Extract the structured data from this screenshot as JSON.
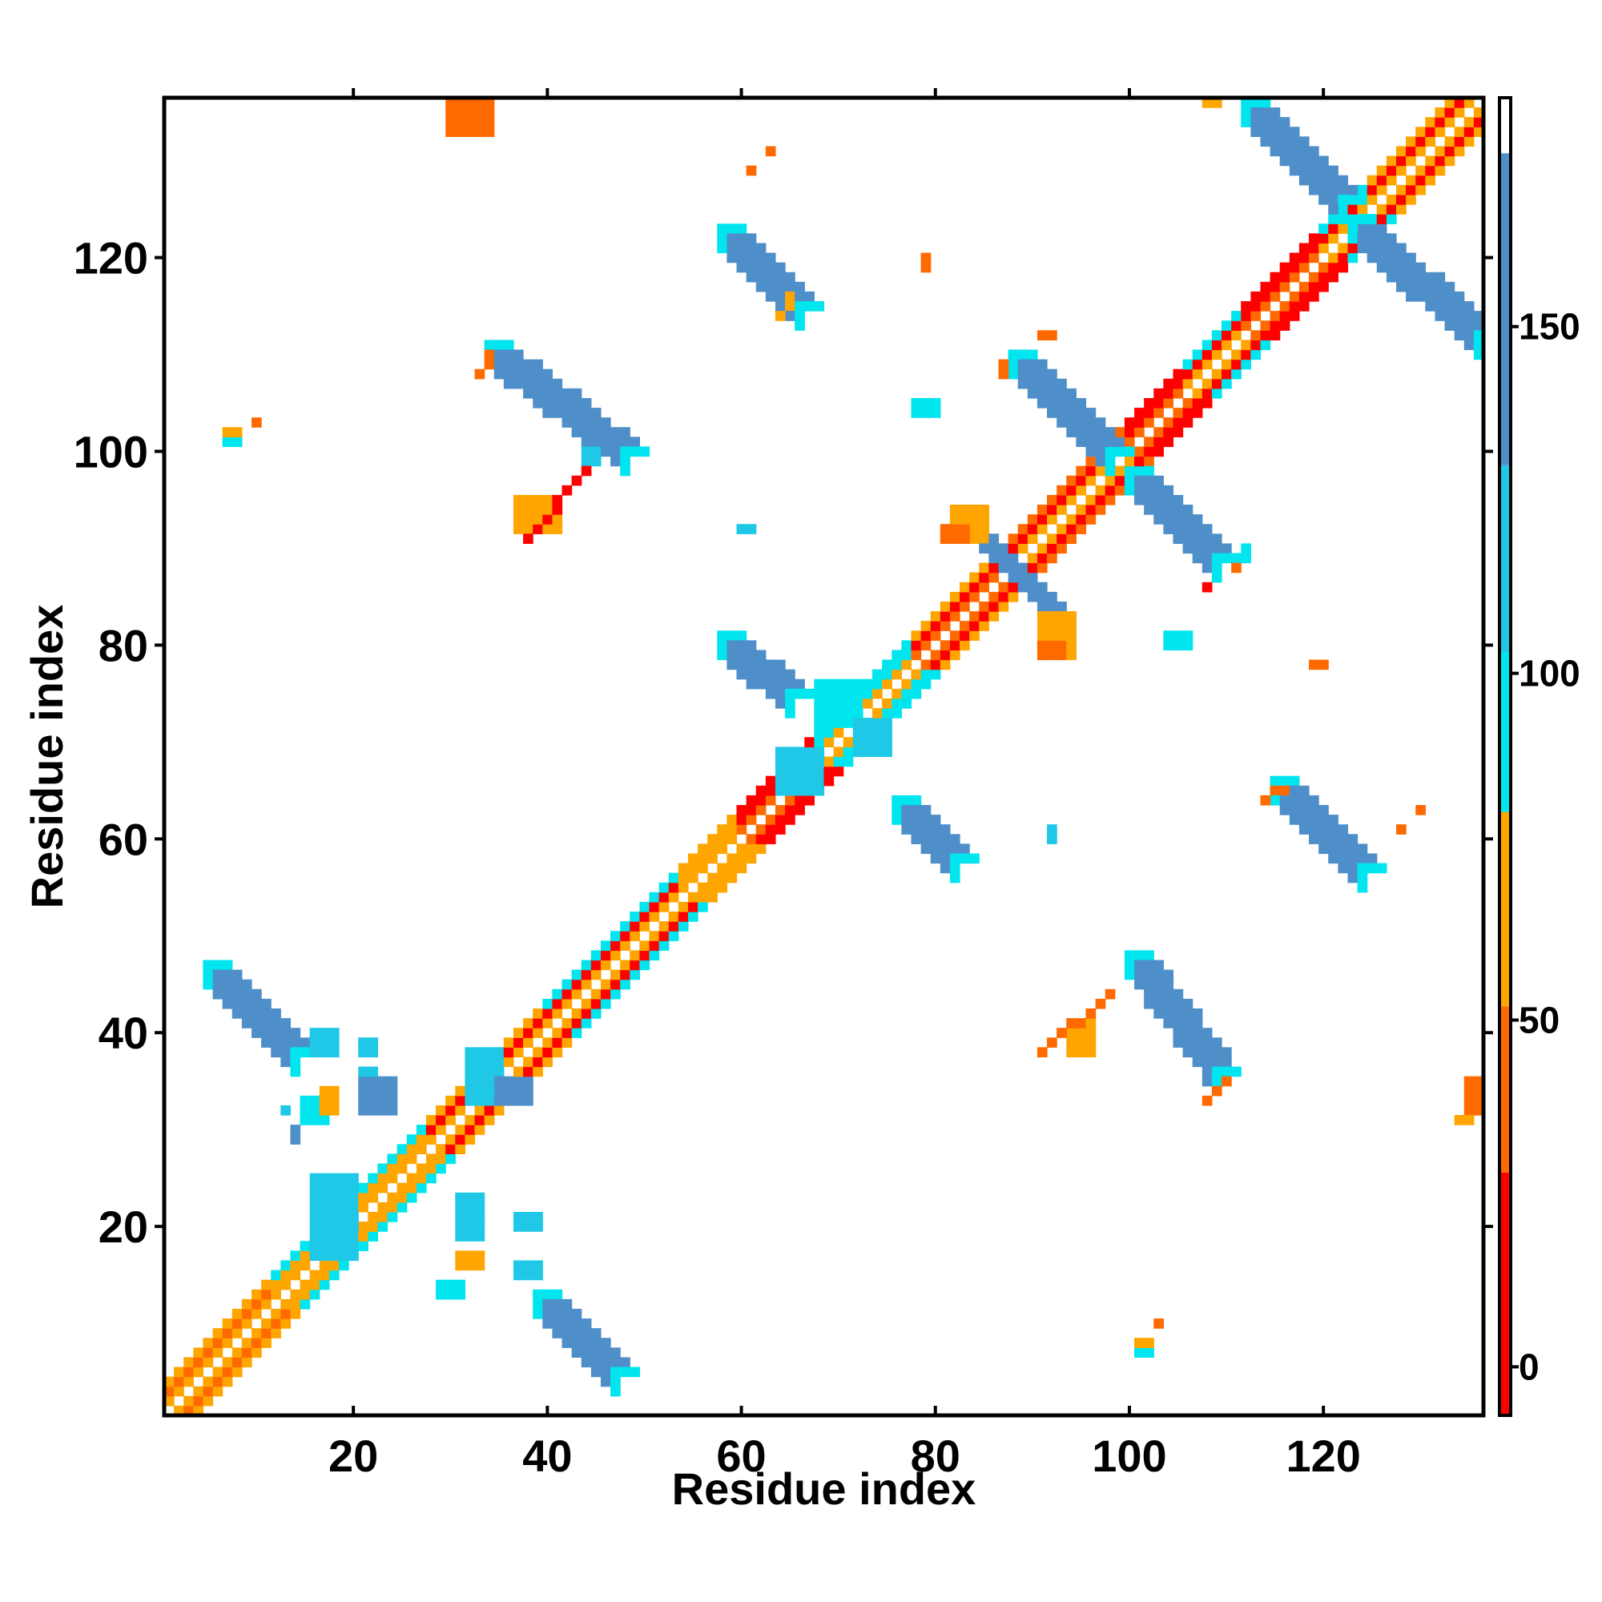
{
  "chart_data": {
    "type": "heatmap",
    "title": "",
    "xlabel": "Residue index",
    "ylabel": "Residue index",
    "xlim": [
      1,
      136
    ],
    "ylim": [
      1,
      136
    ],
    "x_ticks": [
      20,
      40,
      60,
      80,
      100,
      120
    ],
    "y_ticks": [
      20,
      40,
      60,
      80,
      100,
      120
    ],
    "grid": false,
    "colorbar": {
      "placement": "right",
      "range": [
        -7,
        183
      ],
      "ticks": [
        0,
        50,
        100,
        150
      ],
      "bins": [
        {
          "from": -7,
          "to": 28,
          "color": "#ff0000"
        },
        {
          "from": 28,
          "to": 52,
          "color": "#ff6a00"
        },
        {
          "from": 52,
          "to": 80,
          "color": "#ffa500"
        },
        {
          "from": 80,
          "to": 103,
          "color": "#00e5ee"
        },
        {
          "from": 103,
          "to": 130,
          "color": "#1ec8e6"
        },
        {
          "from": 130,
          "to": 175,
          "color": "#4f8fc9"
        },
        {
          "from": 175,
          "to": 183,
          "color": "#ffffff"
        }
      ]
    },
    "colors": {
      "red": "#ff0000",
      "orange_red": "#ff6a00",
      "orange": "#ffa500",
      "cyan": "#00e5ee",
      "light_blue": "#1ec8e6",
      "steel_blue": "#4f8fc9"
    },
    "regions": {
      "diagonal_bands": [
        {
          "from": 1,
          "to": 12,
          "near": "orange",
          "mid": "orange_red",
          "far": "orange"
        },
        {
          "from": 12,
          "to": 28,
          "near": "orange",
          "mid": "orange",
          "far": "cyan"
        },
        {
          "from": 28,
          "to": 40,
          "near": "orange",
          "mid": "red",
          "far": "orange"
        },
        {
          "from": 40,
          "to": 54,
          "near": "orange",
          "mid": "red",
          "far": "cyan"
        },
        {
          "from": 54,
          "to": 60,
          "near": "orange",
          "mid": "orange",
          "far": "orange"
        },
        {
          "from": 60,
          "to": 68,
          "near": "orange_red",
          "mid": "red",
          "far": "red"
        },
        {
          "from": 68,
          "to": 78,
          "near": "orange",
          "mid": "cyan",
          "far": "cyan"
        },
        {
          "from": 78,
          "to": 88,
          "near": "orange_red",
          "mid": "red",
          "far": "orange"
        },
        {
          "from": 88,
          "to": 100,
          "near": "orange",
          "mid": "red",
          "far": "orange_red"
        },
        {
          "from": 100,
          "to": 106,
          "near": "orange_red",
          "mid": "red",
          "far": "red"
        },
        {
          "from": 106,
          "to": 112,
          "near": "orange",
          "mid": "red",
          "far": "cyan"
        },
        {
          "from": 112,
          "to": 120,
          "near": "orange_red",
          "mid": "red",
          "far": "red"
        },
        {
          "from": 120,
          "to": 125,
          "near": "orange",
          "mid": "red",
          "far": "cyan"
        },
        {
          "from": 125,
          "to": 136,
          "near": "orange",
          "mid": "red",
          "far": "orange"
        }
      ],
      "antiparallel_bands": [
        {
          "x0": 5,
          "y0": 47,
          "x1": 14,
          "y1": 38,
          "width": 3,
          "color": "steel_blue",
          "end_color": "cyan"
        },
        {
          "x0": 39,
          "y0": 13,
          "x1": 47,
          "y1": 5,
          "width": 3,
          "color": "steel_blue",
          "end_color": "cyan"
        },
        {
          "x0": 34,
          "y0": 111,
          "x1": 48,
          "y1": 100,
          "width": 3,
          "color": "steel_blue",
          "end_color": "cyan"
        },
        {
          "x0": 58,
          "y0": 123,
          "x1": 66,
          "y1": 115,
          "width": 3,
          "color": "steel_blue",
          "end_color": "cyan"
        },
        {
          "x0": 58,
          "y0": 81,
          "x1": 65,
          "y1": 75,
          "width": 3,
          "color": "steel_blue",
          "end_color": "cyan"
        },
        {
          "x0": 76,
          "y0": 64,
          "x1": 82,
          "y1": 58,
          "width": 3,
          "color": "steel_blue",
          "end_color": "cyan"
        },
        {
          "x0": 100,
          "y0": 48,
          "x1": 109,
          "y1": 36,
          "width": 3,
          "color": "steel_blue",
          "end_color": "cyan"
        },
        {
          "x0": 115,
          "y0": 66,
          "x1": 124,
          "y1": 57,
          "width": 3,
          "color": "steel_blue",
          "end_color": "cyan"
        },
        {
          "x0": 88,
          "y0": 110,
          "x1": 98,
          "y1": 100,
          "width": 3,
          "color": "steel_blue",
          "end_color": "cyan"
        },
        {
          "x0": 100,
          "y0": 98,
          "x1": 109,
          "y1": 89,
          "width": 3,
          "color": "steel_blue",
          "end_color": "cyan"
        },
        {
          "x0": 112,
          "y0": 136,
          "x1": 122,
          "y1": 126,
          "width": 3,
          "color": "steel_blue",
          "end_color": "cyan"
        },
        {
          "x0": 123,
          "y0": 124,
          "x1": 136,
          "y1": 112,
          "width": 3,
          "color": "steel_blue",
          "end_color": "cyan"
        },
        {
          "x0": 84,
          "y0": 92,
          "x1": 93,
          "y1": 83,
          "width": 2,
          "color": "steel_blue",
          "end_color": "cyan"
        }
      ],
      "blocks": [
        {
          "x": [
            30,
            34
          ],
          "y": [
            133,
            136
          ],
          "color": "orange_red"
        },
        {
          "x": [
            108,
            109
          ],
          "y": [
            136,
            136
          ],
          "color": "orange"
        },
        {
          "x": [
            135,
            136
          ],
          "y": [
            32,
            35
          ],
          "color": "orange_red"
        },
        {
          "x": [
            134,
            135
          ],
          "y": [
            31,
            31
          ],
          "color": "orange"
        },
        {
          "x": [
            82,
            85
          ],
          "y": [
            91,
            94
          ],
          "color": "orange"
        },
        {
          "x": [
            81,
            83
          ],
          "y": [
            91,
            92
          ],
          "color": "orange_red"
        },
        {
          "x": [
            91,
            94
          ],
          "y": [
            79,
            83
          ],
          "color": "orange"
        },
        {
          "x": [
            91,
            93
          ],
          "y": [
            79,
            80
          ],
          "color": "orange_red"
        },
        {
          "x": [
            68,
            72
          ],
          "y": [
            72,
            76
          ],
          "color": "cyan"
        },
        {
          "x": [
            72,
            75
          ],
          "y": [
            69,
            72
          ],
          "color": "light_blue"
        },
        {
          "x": [
            64,
            68
          ],
          "y": [
            65,
            69
          ],
          "color": "light_blue"
        },
        {
          "x": [
            32,
            35
          ],
          "y": [
            33,
            38
          ],
          "color": "light_blue"
        },
        {
          "x": [
            35,
            38
          ],
          "y": [
            33,
            35
          ],
          "color": "steel_blue"
        },
        {
          "x": [
            16,
            20
          ],
          "y": [
            17,
            25
          ],
          "color": "light_blue"
        },
        {
          "x": [
            31,
            33
          ],
          "y": [
            19,
            23
          ],
          "color": "light_blue"
        },
        {
          "x": [
            37,
            39
          ],
          "y": [
            20,
            21
          ],
          "color": "light_blue"
        },
        {
          "x": [
            37,
            39
          ],
          "y": [
            15,
            16
          ],
          "color": "light_blue"
        },
        {
          "x": [
            29,
            31
          ],
          "y": [
            13,
            14
          ],
          "color": "cyan"
        },
        {
          "x": [
            31,
            33
          ],
          "y": [
            16,
            17
          ],
          "color": "orange"
        },
        {
          "x": [
            21,
            24
          ],
          "y": [
            32,
            35
          ],
          "color": "steel_blue"
        },
        {
          "x": [
            16,
            18
          ],
          "y": [
            38,
            40
          ],
          "color": "light_blue"
        },
        {
          "x": [
            15,
            17
          ],
          "y": [
            31,
            33
          ],
          "color": "cyan"
        },
        {
          "x": [
            17,
            18
          ],
          "y": [
            32,
            34
          ],
          "color": "orange"
        },
        {
          "x": [
            21,
            22
          ],
          "y": [
            38,
            39
          ],
          "color": "light_blue"
        },
        {
          "x": [
            21,
            22
          ],
          "y": [
            36,
            36
          ],
          "color": "light_blue"
        },
        {
          "x": [
            60,
            61
          ],
          "y": [
            92,
            92
          ],
          "color": "light_blue"
        },
        {
          "x": [
            92,
            92
          ],
          "y": [
            60,
            61
          ],
          "color": "light_blue"
        },
        {
          "x": [
            104,
            106
          ],
          "y": [
            80,
            81
          ],
          "color": "cyan"
        },
        {
          "x": [
            78,
            80
          ],
          "y": [
            104,
            105
          ],
          "color": "cyan"
        },
        {
          "x": [
            44,
            45
          ],
          "y": [
            99,
            100
          ],
          "color": "light_blue"
        },
        {
          "x": [
            94,
            96
          ],
          "y": [
            38,
            41
          ],
          "color": "orange"
        },
        {
          "x": [
            37,
            41
          ],
          "y": [
            92,
            95
          ],
          "color": "orange"
        },
        {
          "x": [
            101,
            102
          ],
          "y": [
            7,
            8
          ],
          "color": "orange"
        },
        {
          "x": [
            101,
            102
          ],
          "y": [
            7,
            7
          ],
          "color": "cyan"
        },
        {
          "x": [
            7,
            8
          ],
          "y": [
            101,
            102
          ],
          "color": "orange"
        },
        {
          "x": [
            7,
            8
          ],
          "y": [
            101,
            101
          ],
          "color": "cyan"
        },
        {
          "x": [
            119,
            120
          ],
          "y": [
            78,
            78
          ],
          "color": "orange_red"
        },
        {
          "x": [
            79,
            79
          ],
          "y": [
            119,
            120
          ],
          "color": "orange_red"
        },
        {
          "x": [
            63,
            63
          ],
          "y": [
            131,
            131
          ],
          "color": "orange_red"
        },
        {
          "x": [
            61,
            61
          ],
          "y": [
            129,
            129
          ],
          "color": "orange_red"
        },
        {
          "x": [
            91,
            92
          ],
          "y": [
            112,
            112
          ],
          "color": "orange_red"
        },
        {
          "x": [
            87,
            87
          ],
          "y": [
            108,
            109
          ],
          "color": "orange_red"
        },
        {
          "x": [
            108,
            108
          ],
          "y": [
            86,
            86
          ],
          "color": "red"
        },
        {
          "x": [
            111,
            111
          ],
          "y": [
            88,
            88
          ],
          "color": "orange_red"
        },
        {
          "x": [
            112,
            112
          ],
          "y": [
            89,
            90
          ],
          "color": "cyan"
        },
        {
          "x": [
            10,
            10
          ],
          "y": [
            103,
            103
          ],
          "color": "orange_red"
        },
        {
          "x": [
            103,
            103
          ],
          "y": [
            10,
            10
          ],
          "color": "orange_red"
        },
        {
          "x": [
            130,
            130
          ],
          "y": [
            63,
            63
          ],
          "color": "orange_red"
        },
        {
          "x": [
            128,
            128
          ],
          "y": [
            61,
            61
          ],
          "color": "orange_red"
        },
        {
          "x": [
            13,
            13
          ],
          "y": [
            32,
            32
          ],
          "color": "light_blue"
        },
        {
          "x": [
            14,
            14
          ],
          "y": [
            29,
            30
          ],
          "color": "steel_blue"
        }
      ],
      "diagonal_strokes": [
        {
          "x0": 38,
          "y0": 91,
          "x1": 44,
          "y1": 98,
          "color": "red"
        },
        {
          "x0": 91,
          "y0": 38,
          "x1": 98,
          "y1": 44,
          "color": "orange_red"
        },
        {
          "x0": 33,
          "y0": 108,
          "x1": 34,
          "y1": 110,
          "color": "orange_red"
        },
        {
          "x0": 108,
          "y0": 33,
          "x1": 110,
          "y1": 35,
          "color": "orange_red"
        },
        {
          "x0": 64,
          "y0": 114,
          "x1": 65,
          "y1": 116,
          "color": "orange"
        },
        {
          "x0": 114,
          "y0": 64,
          "x1": 116,
          "y1": 65,
          "color": "orange_red"
        }
      ]
    }
  }
}
